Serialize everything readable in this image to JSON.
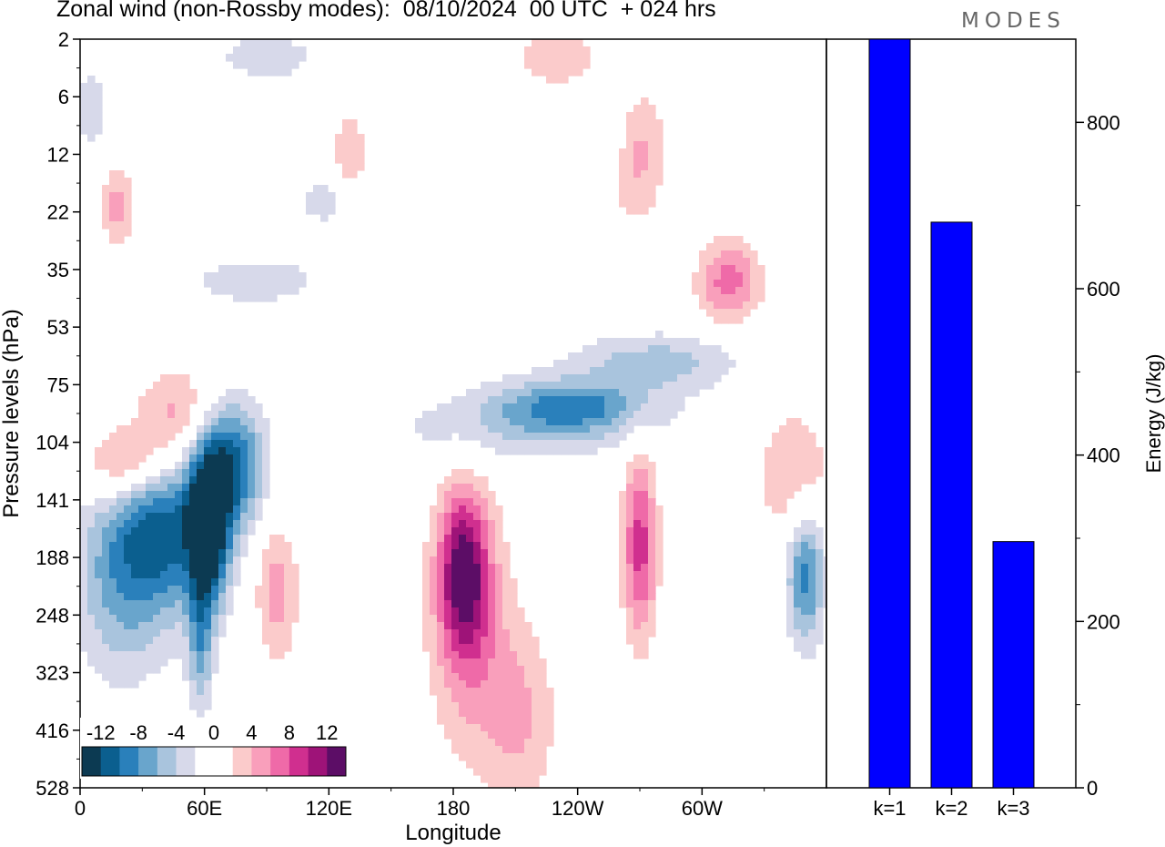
{
  "title": "Zonal wind (non-Rossby modes):  08/10/2024  00 UTC  + 024 hrs",
  "logo": "MODES",
  "chart_data": [
    {
      "type": "heatmap",
      "ylabel": "Pressure levels (hPa)",
      "xlabel": "Longitude",
      "y_ticks": [
        "2",
        "6",
        "12",
        "22",
        "35",
        "53",
        "75",
        "104",
        "141",
        "188",
        "248",
        "323",
        "416",
        "528"
      ],
      "x_ticks": [
        "0",
        "60E",
        "120E",
        "180",
        "120W",
        "60W"
      ],
      "colorbar_labels": [
        "-12",
        "-8",
        "-4",
        "0",
        "4",
        "8",
        "12"
      ],
      "colors": [
        "#0c3a52",
        "#0b5f8f",
        "#2a80bb",
        "#69a5cc",
        "#a9c4dd",
        "#d7d9ea",
        "#ffffff",
        "#ffffff",
        "#fbcbcb",
        "#f99fbb",
        "#ef6aa8",
        "#d02f8f",
        "#9e1378",
        "#5c0d66"
      ],
      "features": [
        {
          "lon": 62,
          "lev": 8.4,
          "v": -15,
          "sx": 10,
          "sy": 1.4
        },
        {
          "lon": 40,
          "lev": 8.4,
          "v": -10,
          "sx": 22,
          "sy": 1.6
        },
        {
          "lon": 75,
          "lev": 7.4,
          "v": -10,
          "sx": 14,
          "sy": 1.1
        },
        {
          "lon": 58,
          "lev": 10.5,
          "v": -6,
          "sx": 6,
          "sy": 1.2
        },
        {
          "lon": 18,
          "lev": 9.3,
          "v": -6,
          "sx": 22,
          "sy": 1.8
        },
        {
          "lon": 5,
          "lev": 1.2,
          "v": -3,
          "sx": 10,
          "sy": 0.9
        },
        {
          "lon": 85,
          "lev": 4.2,
          "v": -3,
          "sx": 40,
          "sy": 0.5
        },
        {
          "lon": 120,
          "lev": 2.8,
          "v": -3,
          "sx": 18,
          "sy": 0.5
        },
        {
          "lon": 90,
          "lev": 0.3,
          "v": -3,
          "sx": 30,
          "sy": 0.5
        },
        {
          "lon": 238,
          "lev": 6.4,
          "v": -8,
          "sx": 40,
          "sy": 0.5
        },
        {
          "lon": 278,
          "lev": 5.6,
          "v": -5,
          "sx": 40,
          "sy": 0.5
        },
        {
          "lon": 200,
          "lev": 6.8,
          "v": -3,
          "sx": 60,
          "sy": 0.7
        },
        {
          "lon": 350,
          "lev": 9.3,
          "v": -9,
          "sx": 9,
          "sy": 1.2
        },
        {
          "lon": 255,
          "lev": 1.6,
          "v": -3,
          "sx": 12,
          "sy": 0.8
        },
        {
          "lon": 25,
          "lev": 7.4,
          "v": 8,
          "sx": 22,
          "sy": 0.7
        },
        {
          "lon": 45,
          "lev": 6.5,
          "v": 6,
          "sx": 20,
          "sy": 0.8
        },
        {
          "lon": 18,
          "lev": 2.9,
          "v": 5,
          "sx": 8,
          "sy": 0.7
        },
        {
          "lon": 185,
          "lev": 9.2,
          "v": 11,
          "sx": 12,
          "sy": 1.4
        },
        {
          "lon": 188,
          "lev": 10.3,
          "v": 5,
          "sx": 20,
          "sy": 2.2
        },
        {
          "lon": 212,
          "lev": 11.8,
          "v": 4,
          "sx": 18,
          "sy": 1.6
        },
        {
          "lon": 270,
          "lev": 8.8,
          "v": 9,
          "sx": 8,
          "sy": 1.6
        },
        {
          "lon": 345,
          "lev": 7.6,
          "v": 4,
          "sx": 18,
          "sy": 1.2
        },
        {
          "lon": 313,
          "lev": 4.2,
          "v": 7,
          "sx": 15,
          "sy": 0.7
        },
        {
          "lon": 268,
          "lev": 2.0,
          "v": 5,
          "sx": 14,
          "sy": 1.1
        },
        {
          "lon": 230,
          "lev": 0.3,
          "v": 4,
          "sx": 20,
          "sy": 0.5
        },
        {
          "lon": 95,
          "lev": 9.6,
          "v": 5,
          "sx": 10,
          "sy": 1.2
        },
        {
          "lon": 130,
          "lev": 2.0,
          "v": 4,
          "sx": 8,
          "sy": 0.8
        }
      ]
    },
    {
      "type": "bar",
      "categories": [
        "k=1",
        "k=2",
        "k=3"
      ],
      "values": [
        900,
        680,
        296
      ],
      "ylabel": "Energy (J/kg)",
      "ylim": [
        0,
        900
      ],
      "y_ticks": [
        0,
        200,
        400,
        600,
        800
      ],
      "color": "#0000ff"
    }
  ]
}
